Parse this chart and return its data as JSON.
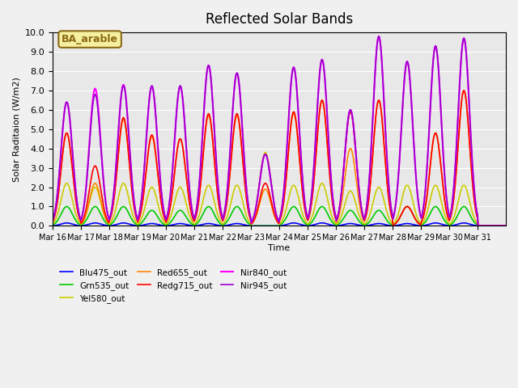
{
  "title": "Reflected Solar Bands",
  "xlabel": "Time",
  "ylabel": "Solar Raditaion (W/m2)",
  "ylim": [
    0,
    10.0
  ],
  "fig_facecolor": "#f0f0f0",
  "plot_bg_color": "#e8e8e8",
  "annotation_text": "BA_arable",
  "annotation_bg": "#f5f0a0",
  "annotation_border": "#8b6914",
  "series_names": [
    "Blu475_out",
    "Grn535_out",
    "Yel580_out",
    "Red655_out",
    "Redg715_out",
    "Nir840_out",
    "Nir945_out"
  ],
  "series_colors": [
    "#0000ff",
    "#00cc00",
    "#cccc00",
    "#ff8800",
    "#ff0000",
    "#ff00ff",
    "#9900cc"
  ],
  "series_lw": [
    1.2,
    1.2,
    1.2,
    1.2,
    1.2,
    1.5,
    1.2
  ],
  "xtick_labels": [
    "Mar 16",
    "Mar 17",
    "Mar 18",
    "Mar 19",
    "Mar 20",
    "Mar 21",
    "Mar 22",
    "Mar 23",
    "Mar 24",
    "Mar 25",
    "Mar 26",
    "Mar 27",
    "Mar 28",
    "Mar 29",
    "Mar 30",
    "Mar 31"
  ],
  "ytick_labels": [
    "0.0",
    "1.0",
    "2.0",
    "3.0",
    "4.0",
    "5.0",
    "6.0",
    "7.0",
    "8.0",
    "9.0",
    "10.0"
  ],
  "ytick_values": [
    0.0,
    1.0,
    2.0,
    3.0,
    4.0,
    5.0,
    6.0,
    7.0,
    8.0,
    9.0,
    10.0
  ],
  "days": 16,
  "points_per_day": 48,
  "day_peaks": [
    [
      0.15,
      0.15,
      0.15,
      0.12,
      0.12,
      0.12,
      0.12,
      0.0,
      0.15,
      0.15,
      0.12,
      0.12,
      0.12,
      0.15,
      0.15,
      0.0
    ],
    [
      1.0,
      1.0,
      1.0,
      0.8,
      0.8,
      1.0,
      1.0,
      0.0,
      1.0,
      1.0,
      0.8,
      0.8,
      1.0,
      1.0,
      1.0,
      0.0
    ],
    [
      2.2,
      2.0,
      2.2,
      2.0,
      2.0,
      2.1,
      2.1,
      3.8,
      2.1,
      2.2,
      1.8,
      2.0,
      2.1,
      2.1,
      2.1,
      0.0
    ],
    [
      4.8,
      2.2,
      5.5,
      4.6,
      4.5,
      5.7,
      5.7,
      1.9,
      5.8,
      6.5,
      4.0,
      6.5,
      1.0,
      4.8,
      7.0,
      0.0
    ],
    [
      4.8,
      3.1,
      5.6,
      4.7,
      4.5,
      5.8,
      5.8,
      2.2,
      5.9,
      6.5,
      5.9,
      6.5,
      1.0,
      4.8,
      7.0,
      0.0
    ],
    [
      6.4,
      7.1,
      7.3,
      7.2,
      7.2,
      8.3,
      7.9,
      3.7,
      8.2,
      8.6,
      6.0,
      9.8,
      8.5,
      9.3,
      9.7,
      0.0
    ],
    [
      6.4,
      6.8,
      7.25,
      7.25,
      7.25,
      8.3,
      7.9,
      3.7,
      8.2,
      8.6,
      6.0,
      9.8,
      8.5,
      9.3,
      9.7,
      0.0
    ]
  ]
}
